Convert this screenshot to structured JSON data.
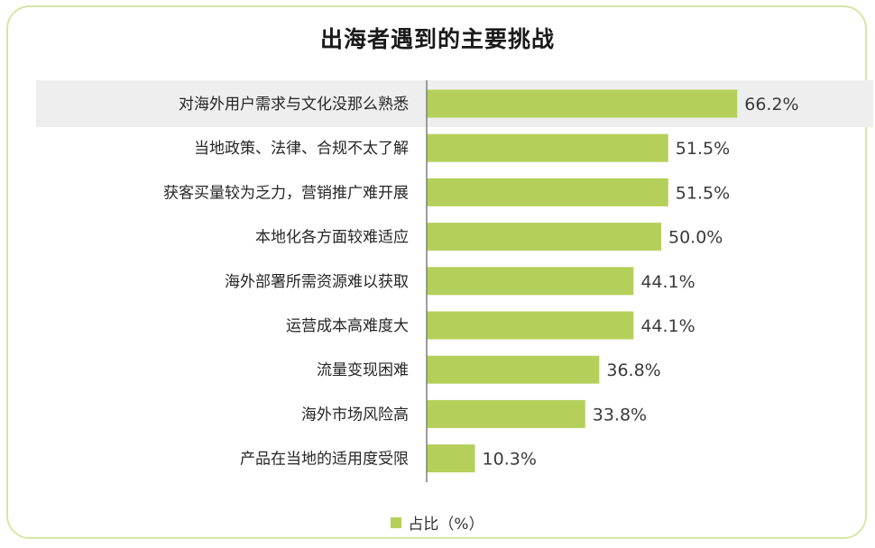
{
  "chart_data": {
    "type": "bar",
    "orientation": "horizontal",
    "title": "出海者遇到的主要挑战",
    "categories": [
      "对海外用户需求与文化没那么熟悉",
      "当地政策、法律、合规不太了解",
      "获客买量较为乏力，营销推广难开展",
      "本地化各方面较难适应",
      "海外部署所需资源难以获取",
      "运营成本高难度大",
      "流量变现困难",
      "海外市场风险高",
      "产品在当地的适用度受限"
    ],
    "values": [
      66.2,
      51.5,
      51.5,
      50.0,
      44.1,
      44.1,
      36.8,
      33.8,
      10.3
    ],
    "value_labels": [
      "66.2%",
      "51.5%",
      "51.5%",
      "50.0%",
      "44.1%",
      "44.1%",
      "36.8%",
      "33.8%",
      "10.3%"
    ],
    "series": [
      {
        "name": "占比（%）"
      }
    ],
    "legend_position": "bottom",
    "grid": false,
    "highlighted_category_index": 0,
    "colors": {
      "bar": "#b5d05a",
      "highlight_row": "#eeeeee",
      "axis": "#7f7f7f",
      "border": "#d6e6a6"
    }
  }
}
